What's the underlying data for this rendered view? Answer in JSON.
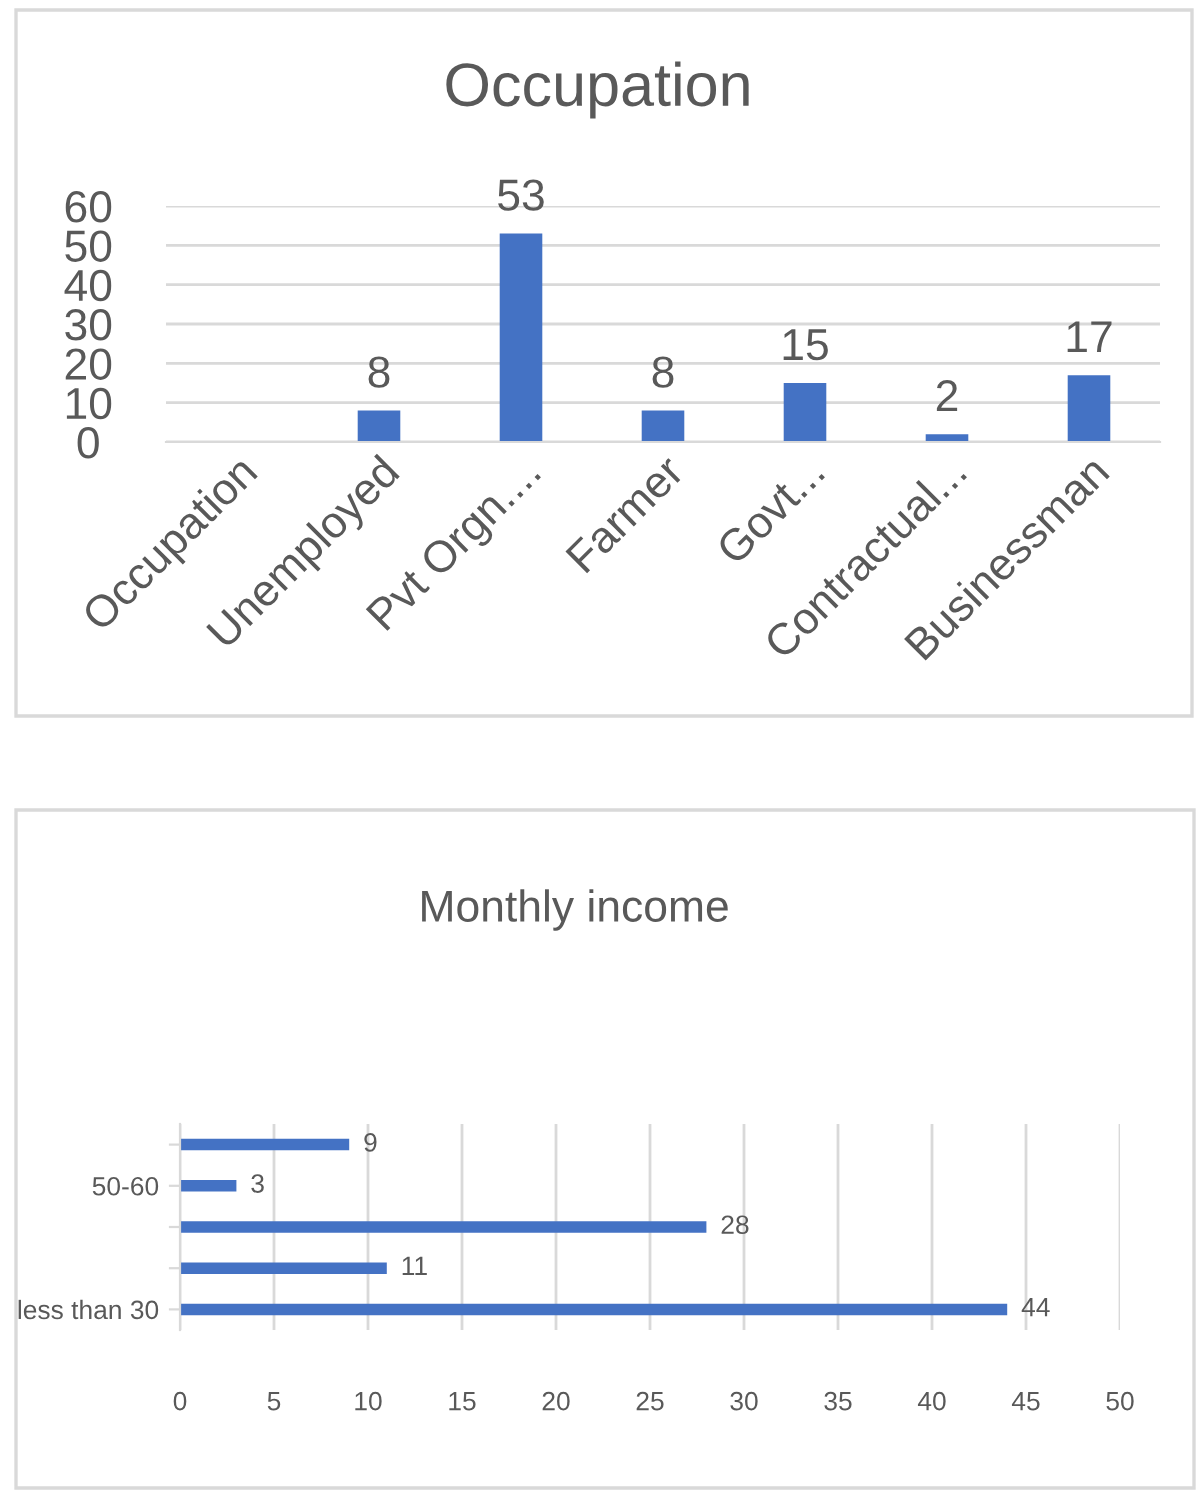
{
  "chart_data": [
    {
      "type": "bar",
      "title": "Occupation",
      "categories": [
        "Occupation",
        "Unemployed",
        "Pvt Orgn....",
        "Farmer",
        "Govt...",
        "Contractual...",
        "Businessman"
      ],
      "values": [
        null,
        8,
        53,
        8,
        15,
        2,
        17
      ],
      "color": "#4472c4",
      "ylim": [
        0,
        60
      ],
      "yticks": [
        0,
        10,
        20,
        30,
        40,
        50,
        60
      ],
      "grid": "y",
      "data_labels": true
    },
    {
      "type": "bar",
      "orientation": "horizontal",
      "title": "Monthly income",
      "categories": [
        null,
        "50-60",
        null,
        null,
        "less than 30"
      ],
      "values": [
        9,
        3,
        28,
        11,
        44
      ],
      "color": "#4472c4",
      "xlim": [
        0,
        50
      ],
      "xticks": [
        0,
        5,
        10,
        15,
        20,
        25,
        30,
        35,
        40,
        45,
        50
      ],
      "grid": "x",
      "data_labels": true
    }
  ]
}
